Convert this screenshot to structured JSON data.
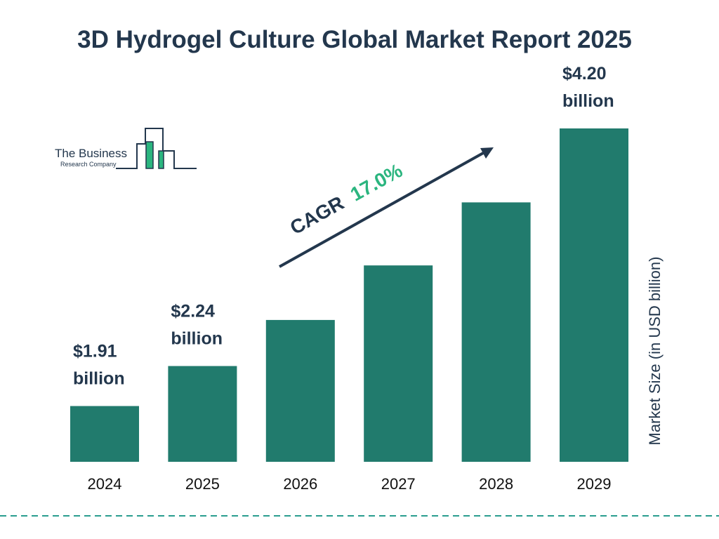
{
  "chart_data": {
    "type": "bar",
    "title": "3D Hydrogel Culture Global Market Report 2025",
    "categories": [
      "2024",
      "2025",
      "2026",
      "2027",
      "2028",
      "2029"
    ],
    "values": [
      1.91,
      2.24,
      2.62,
      3.07,
      3.59,
      4.2
    ],
    "data_labels": [
      [
        "$1.91",
        "billion"
      ],
      [
        "$2.24",
        "billion"
      ],
      null,
      null,
      null,
      [
        "$4.20",
        "billion"
      ]
    ],
    "xlabel": "",
    "ylabel": "Market Size (in USD billion)",
    "ylim": [
      1.45,
      4.2
    ],
    "grid": false,
    "annotation": {
      "prefix": "CAGR",
      "value": "17.0%"
    },
    "colors": {
      "bar": "#217b6d",
      "text": "#23374d",
      "cagr": "#2bb57f",
      "dash": "#2a9d8f"
    }
  },
  "logo": {
    "line1": "The Business",
    "line2": "Research Company"
  }
}
